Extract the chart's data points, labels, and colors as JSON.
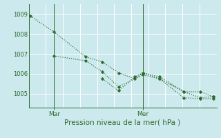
{
  "xlabel": "Pression niveau de la mer( hPa )",
  "bg_color": "#cce9ed",
  "grid_color": "#ffffff",
  "line_color": "#2d6a2d",
  "marker_color": "#2d6a2d",
  "ylim": [
    1004.3,
    1009.5
  ],
  "yticks": [
    1005,
    1006,
    1007,
    1008,
    1009
  ],
  "xlim": [
    0,
    11.5
  ],
  "x_day_labels": [
    {
      "label": "Mar",
      "x": 1.55
    },
    {
      "label": "Mer",
      "x": 7.0
    }
  ],
  "vlines": [
    1.55,
    7.0
  ],
  "series": [
    {
      "x": [
        0.1,
        1.55,
        3.5,
        4.5,
        5.5,
        6.5,
        7.0,
        8.0,
        9.5,
        10.5,
        11.3
      ],
      "y": [
        1008.9,
        1008.1,
        1006.85,
        1006.6,
        1006.05,
        1005.75,
        1006.05,
        1005.85,
        1005.1,
        1005.1,
        1004.85
      ]
    },
    {
      "x": [
        1.55,
        3.5,
        4.5,
        5.5,
        7.0,
        8.0,
        9.5,
        10.5,
        11.3
      ],
      "y": [
        1006.9,
        1006.65,
        1006.1,
        1005.35,
        1005.95,
        1005.75,
        1004.8,
        1004.75,
        1004.75
      ]
    },
    {
      "x": [
        4.5,
        5.5,
        6.5,
        7.0,
        8.0,
        9.5,
        10.5,
        11.3
      ],
      "y": [
        1005.75,
        1005.15,
        1005.85,
        1006.05,
        1005.75,
        1005.1,
        1004.8,
        1004.85
      ]
    }
  ]
}
